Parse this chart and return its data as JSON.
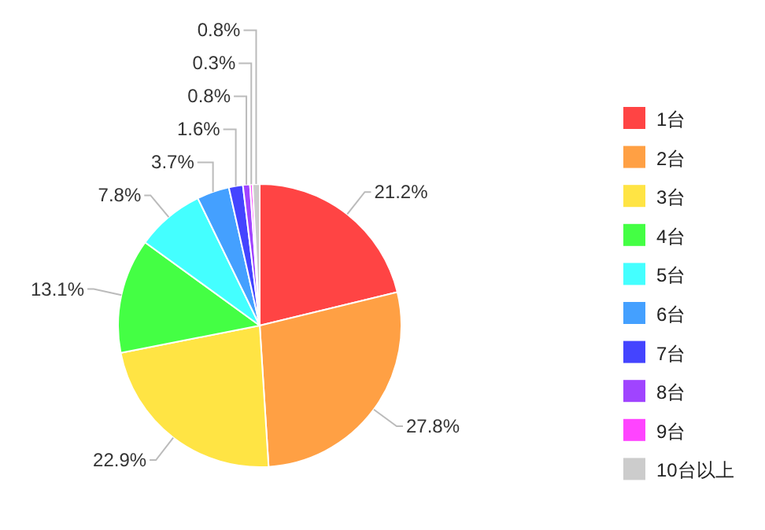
{
  "chart_data": {
    "type": "pie",
    "categories": [
      "1台",
      "2台",
      "3台",
      "4台",
      "5台",
      "6台",
      "7台",
      "8台",
      "9台",
      "10台以上"
    ],
    "values": [
      21.2,
      27.8,
      22.9,
      13.1,
      7.8,
      3.7,
      1.6,
      0.8,
      0.3,
      0.8
    ],
    "value_labels": [
      "21.2%",
      "27.8%",
      "22.9%",
      "13.1%",
      "7.8%",
      "3.7%",
      "1.6%",
      "0.8%",
      "0.3%",
      "0.8%"
    ],
    "colors": [
      "#ff4444",
      "#ffa044",
      "#ffe444",
      "#44ff44",
      "#44ffff",
      "#44a0ff",
      "#4444ff",
      "#a044ff",
      "#ff44ff",
      "#cccccc"
    ],
    "legend": "right"
  }
}
